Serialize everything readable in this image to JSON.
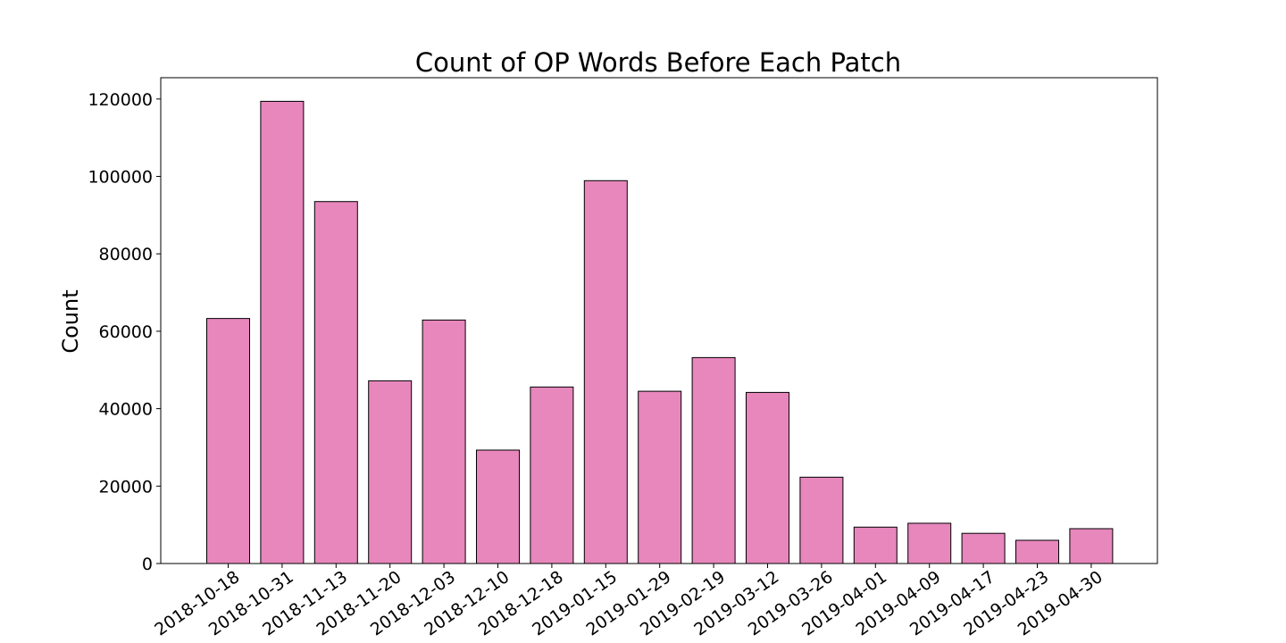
{
  "chart_data": {
    "type": "bar",
    "title": "Count of OP Words Before Each Patch",
    "xlabel": "",
    "ylabel": "Count",
    "categories": [
      "2018-10-18",
      "2018-10-31",
      "2018-11-13",
      "2018-11-20",
      "2018-12-03",
      "2018-12-10",
      "2018-12-18",
      "2019-01-15",
      "2019-01-29",
      "2019-02-19",
      "2019-03-12",
      "2019-03-26",
      "2019-04-01",
      "2019-04-09",
      "2019-04-17",
      "2019-04-23",
      "2019-04-30"
    ],
    "values": [
      63300,
      119400,
      93500,
      47200,
      62900,
      29300,
      45600,
      98900,
      44500,
      53200,
      44200,
      22300,
      9400,
      10400,
      7800,
      6000,
      9000
    ],
    "ylim": [
      0,
      125500
    ],
    "yticks": [
      0,
      20000,
      40000,
      60000,
      80000,
      100000,
      120000
    ],
    "bar_color": "#e787bc",
    "grid": false,
    "legend": "none"
  }
}
